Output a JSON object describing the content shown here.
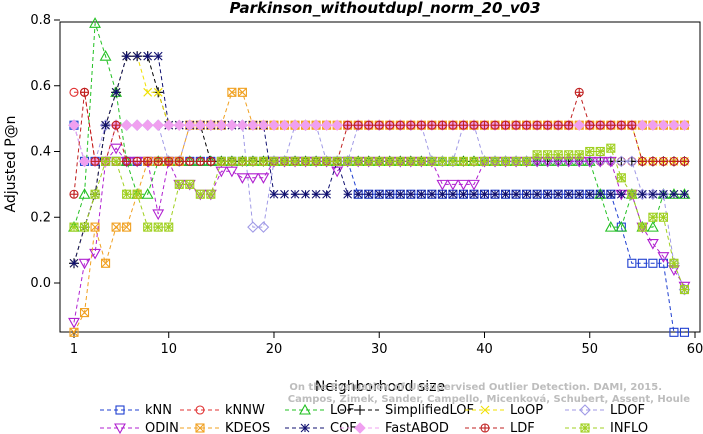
{
  "chart_data": {
    "type": "line",
    "title": "Parkinson_withoutdupl_norm_20_v03",
    "xlabel": "Neighborhood size",
    "ylabel": "Adjusted P@n",
    "xlim": [
      0,
      60
    ],
    "ylim": [
      -0.15,
      0.8
    ],
    "x_ticks": [
      1,
      10,
      20,
      30,
      40,
      50,
      60
    ],
    "y_ticks": [
      0.0,
      0.2,
      0.4,
      0.6,
      0.8
    ],
    "y_tick_labels": [
      "0.0",
      "0.2",
      "0.4",
      "0.6",
      "0.8"
    ],
    "grid": false,
    "legend_position": "bottom",
    "watermark": [
      "Campos, Zimek, Sander, Campello, Micenková, Schubert, Assent, Houle",
      "On the Evaluation of Unsupervised Outlier Detection. DAMI, 2015."
    ],
    "series": [
      {
        "name": "kNN",
        "color": "#1f3fd0",
        "marker": "square",
        "x": [
          1,
          2,
          3,
          4,
          5,
          6,
          7,
          8,
          9,
          10,
          15,
          20,
          25,
          28,
          30,
          35,
          40,
          45,
          50,
          52,
          53,
          54,
          55,
          56,
          57,
          58,
          59
        ],
        "y": [
          0.48,
          0.37,
          0.37,
          0.37,
          0.37,
          0.37,
          0.37,
          0.37,
          0.37,
          0.37,
          0.37,
          0.37,
          0.37,
          0.27,
          0.27,
          0.27,
          0.27,
          0.27,
          0.27,
          0.27,
          0.17,
          0.06,
          0.06,
          0.06,
          0.06,
          -0.15,
          -0.15
        ]
      },
      {
        "name": "kNNW",
        "color": "#e03030",
        "marker": "circle",
        "x": [
          1,
          2,
          3,
          4,
          5,
          6,
          7,
          10,
          20,
          27,
          30,
          40,
          50,
          59
        ],
        "y": [
          0.58,
          0.58,
          0.37,
          0.37,
          0.37,
          0.37,
          0.37,
          0.37,
          0.37,
          0.37,
          0.37,
          0.37,
          0.37,
          0.37
        ]
      },
      {
        "name": "LOF",
        "color": "#22c022",
        "marker": "triangle",
        "x": [
          1,
          2,
          3,
          4,
          5,
          6,
          7,
          8,
          9,
          10,
          20,
          27,
          30,
          40,
          50,
          51,
          52,
          53,
          54,
          55,
          56,
          57,
          58,
          59
        ],
        "y": [
          0.17,
          0.27,
          0.79,
          0.69,
          0.58,
          0.37,
          0.27,
          0.27,
          0.37,
          0.37,
          0.37,
          0.37,
          0.37,
          0.37,
          0.37,
          0.27,
          0.17,
          0.17,
          0.27,
          0.17,
          0.17,
          0.27,
          0.27,
          0.27
        ]
      },
      {
        "name": "SimplifiedLOF",
        "color": "#000000",
        "marker": "plus",
        "x": [
          1,
          2,
          3,
          4,
          5,
          6,
          7,
          8,
          9,
          10,
          11,
          12,
          13,
          14,
          20,
          27,
          30,
          40,
          50,
          59
        ],
        "y": [
          0.06,
          0.17,
          0.27,
          0.48,
          0.58,
          0.69,
          0.69,
          0.69,
          0.58,
          0.48,
          0.48,
          0.48,
          0.48,
          0.37,
          0.37,
          0.37,
          0.37,
          0.37,
          0.37,
          0.37
        ]
      },
      {
        "name": "LoOP",
        "color": "#f0e000",
        "marker": "x",
        "x": [
          1,
          2,
          3,
          4,
          5,
          6,
          7,
          8,
          9,
          10,
          20,
          30,
          40,
          50,
          55,
          59
        ],
        "y": [
          0.06,
          0.17,
          0.27,
          0.48,
          0.58,
          0.69,
          0.69,
          0.58,
          0.58,
          0.48,
          0.48,
          0.48,
          0.48,
          0.48,
          0.37,
          0.37
        ]
      },
      {
        "name": "LDOF",
        "color": "#a09ae6",
        "marker": "diamond",
        "x": [
          1,
          2,
          3,
          4,
          5,
          6,
          7,
          8,
          9,
          10,
          12,
          14,
          16,
          18,
          20,
          22,
          25,
          28,
          30,
          33,
          35,
          38,
          40,
          45,
          50,
          55,
          58,
          59
        ],
        "y": [
          0.48,
          0.37,
          0.37,
          0.48,
          0.48,
          0.48,
          0.48,
          0.48,
          0.48,
          0.37,
          0.48,
          0.48,
          0.48,
          0.17,
          0.37,
          0.48,
          0.37,
          0.48,
          0.48,
          0.48,
          0.37,
          0.48,
          0.37,
          0.37,
          0.37,
          0.27,
          0.06,
          -0.02
        ]
      },
      {
        "name": "ODIN",
        "color": "#b020d0",
        "marker": "triangle-down",
        "x": [
          1,
          2,
          3,
          4,
          5,
          6,
          7,
          8,
          9,
          10,
          11,
          12,
          13,
          14,
          15,
          16,
          17,
          18,
          20,
          25,
          26,
          27,
          30,
          35,
          36,
          40,
          45,
          50,
          53,
          54,
          55,
          56,
          57,
          58,
          59
        ],
        "y": [
          -0.12,
          0.06,
          0.09,
          0.37,
          0.41,
          0.37,
          0.37,
          0.37,
          0.21,
          0.37,
          0.3,
          0.3,
          0.27,
          0.27,
          0.34,
          0.34,
          0.32,
          0.32,
          0.37,
          0.37,
          0.34,
          0.37,
          0.37,
          0.37,
          0.3,
          0.37,
          0.37,
          0.37,
          0.27,
          0.27,
          0.17,
          0.12,
          0.08,
          0.04,
          -0.01
        ]
      },
      {
        "name": "KDEOS",
        "color": "#f0a020",
        "marker": "square-x",
        "x": [
          1,
          2,
          3,
          4,
          5,
          6,
          7,
          8,
          9,
          10,
          11,
          12,
          13,
          14,
          15,
          16,
          17,
          18,
          19,
          20,
          25,
          30,
          35,
          40,
          45,
          50,
          55,
          59
        ],
        "y": [
          -0.15,
          -0.09,
          0.17,
          0.06,
          0.17,
          0.17,
          0.27,
          0.37,
          0.37,
          0.37,
          0.37,
          0.48,
          0.48,
          0.48,
          0.48,
          0.58,
          0.58,
          0.48,
          0.48,
          0.48,
          0.48,
          0.48,
          0.48,
          0.48,
          0.48,
          0.48,
          0.48,
          0.48
        ]
      },
      {
        "name": "COF",
        "color": "#101070",
        "marker": "star",
        "x": [
          1,
          2,
          3,
          4,
          5,
          6,
          7,
          8,
          9,
          10,
          11,
          12,
          20,
          21,
          22,
          25,
          26,
          27,
          28,
          30,
          40,
          50,
          55,
          58,
          59
        ],
        "y": [
          0.06,
          0.17,
          0.27,
          0.48,
          0.58,
          0.69,
          0.69,
          0.69,
          0.69,
          0.48,
          0.48,
          0.48,
          0.27,
          0.27,
          0.27,
          0.27,
          0.37,
          0.27,
          0.27,
          0.27,
          0.27,
          0.27,
          0.27,
          0.27,
          0.27
        ]
      },
      {
        "name": "FastABOD",
        "color": "#f0a0f0",
        "marker": "diamond-filled",
        "x": [
          1,
          2,
          3,
          4,
          5,
          6,
          7,
          8,
          9,
          10,
          15,
          20,
          30,
          40,
          50,
          59
        ],
        "y": [
          0.48,
          0.37,
          0.37,
          0.37,
          0.48,
          0.48,
          0.48,
          0.48,
          0.48,
          0.48,
          0.48,
          0.48,
          0.48,
          0.48,
          0.48,
          0.48
        ]
      },
      {
        "name": "LDF",
        "color": "#c02020",
        "marker": "circle-plus",
        "x": [
          1,
          2,
          3,
          4,
          5,
          6,
          7,
          8,
          9,
          10,
          15,
          20,
          25,
          27,
          30,
          40,
          45,
          48,
          49,
          50,
          55,
          59
        ],
        "y": [
          0.27,
          0.58,
          0.37,
          0.37,
          0.48,
          0.37,
          0.37,
          0.37,
          0.37,
          0.37,
          0.37,
          0.37,
          0.37,
          0.48,
          0.48,
          0.48,
          0.48,
          0.48,
          0.58,
          0.48,
          0.37,
          0.37
        ]
      },
      {
        "name": "INFLO",
        "color": "#a0d020",
        "marker": "star-square",
        "x": [
          1,
          2,
          3,
          4,
          5,
          6,
          7,
          8,
          9,
          10,
          11,
          12,
          13,
          14,
          15,
          20,
          30,
          40,
          45,
          50,
          52,
          53,
          54,
          55,
          56,
          57,
          58,
          59
        ],
        "y": [
          0.17,
          0.17,
          0.27,
          0.37,
          0.37,
          0.27,
          0.27,
          0.17,
          0.17,
          0.17,
          0.3,
          0.3,
          0.27,
          0.27,
          0.37,
          0.37,
          0.37,
          0.37,
          0.39,
          0.4,
          0.41,
          0.32,
          0.27,
          0.17,
          0.2,
          0.2,
          0.06,
          -0.02
        ]
      }
    ]
  }
}
